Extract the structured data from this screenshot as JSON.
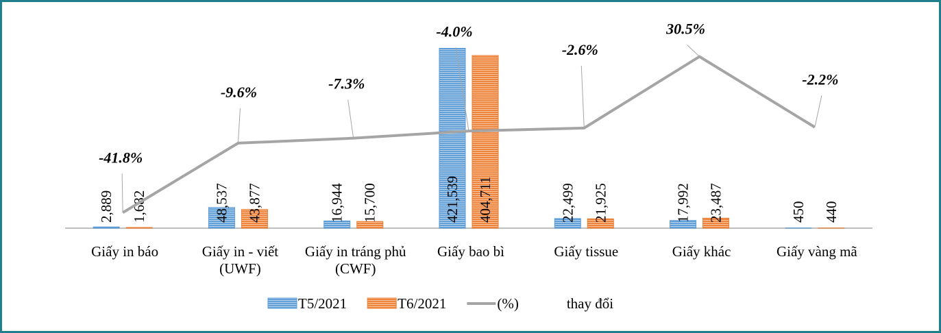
{
  "chart_data": {
    "type": "bar",
    "categories": [
      "Giấy in báo",
      "Giấy in - viết (UWF)",
      "Giấy in tráng phủ (CWF)",
      "Giấy bao bì",
      "Giấy tissue",
      "Giấy khác",
      "Giấy vàng mã"
    ],
    "series": [
      {
        "name": "T5/2021",
        "color": "#5b9bd5",
        "values": [
          2889,
          48537,
          16944,
          421539,
          22499,
          17992,
          450
        ],
        "value_labels": [
          "2,889",
          "48,537",
          "16,944",
          "421,539",
          "22,499",
          "17,992",
          "450"
        ]
      },
      {
        "name": "T6/2021",
        "color": "#ed7d31",
        "values": [
          1682,
          43877,
          15700,
          404711,
          21925,
          23487,
          440
        ],
        "value_labels": [
          "1,682",
          "43,877",
          "15,700",
          "404,711",
          "21,925",
          "23,487",
          "440"
        ]
      },
      {
        "name": "(%)",
        "type": "line",
        "axis": "y2",
        "color": "#a5a5a5",
        "values": [
          -41.8,
          -9.6,
          -7.3,
          -4.0,
          -2.6,
          30.5,
          -2.2
        ],
        "value_labels": [
          "-41.8%",
          "-9.6%",
          "-7.3%",
          "-4.0%",
          "-2.6%",
          "30.5%",
          "-2.2%"
        ]
      }
    ],
    "legend_note": "thay đổi",
    "ylim": [
      0,
      440000
    ],
    "y2lim": [
      -49,
      38
    ]
  }
}
